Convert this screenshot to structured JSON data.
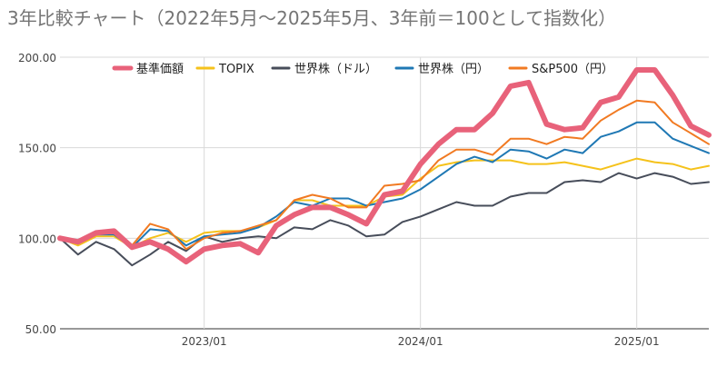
{
  "chart_data": {
    "type": "line",
    "title": "3年比較チャート（2022年5月〜2025年5月、3年前＝100として指数化）",
    "xlabel": "",
    "ylabel": "",
    "ylim": [
      50,
      200
    ],
    "y_ticks": [
      "50.00",
      "100.00",
      "150.00",
      "200.00"
    ],
    "x_ticks": [
      {
        "label": "2023/01",
        "date": "2023-01"
      },
      {
        "label": "2024/01",
        "date": "2024-01"
      },
      {
        "label": "2025/01",
        "date": "2025-01"
      }
    ],
    "grid": true,
    "legend_position": "top",
    "x": [
      "2022-05",
      "2022-06",
      "2022-07",
      "2022-08",
      "2022-09",
      "2022-10",
      "2022-11",
      "2022-12",
      "2023-01",
      "2023-02",
      "2023-03",
      "2023-04",
      "2023-05",
      "2023-06",
      "2023-07",
      "2023-08",
      "2023-09",
      "2023-10",
      "2023-11",
      "2023-12",
      "2024-01",
      "2024-02",
      "2024-03",
      "2024-04",
      "2024-05",
      "2024-06",
      "2024-07",
      "2024-08",
      "2024-09",
      "2024-10",
      "2024-11",
      "2024-12",
      "2025-01",
      "2025-02",
      "2025-03",
      "2025-04",
      "2025-05"
    ],
    "series": [
      {
        "name": "基準価額",
        "color": "#e8627a",
        "width": 6,
        "values": [
          100,
          98,
          103,
          104,
          95,
          98,
          94,
          87,
          94,
          96,
          97,
          92,
          107,
          113,
          117,
          117,
          113,
          108,
          124,
          126,
          141,
          152,
          160,
          160,
          169,
          184,
          186,
          163,
          160,
          161,
          175,
          178,
          193,
          193,
          179,
          162,
          157
        ]
      },
      {
        "name": "TOPIX",
        "color": "#f5c21b",
        "width": 2,
        "values": [
          100,
          96,
          101,
          101,
          95,
          100,
          103,
          98,
          103,
          104,
          104,
          106,
          110,
          121,
          121,
          118,
          118,
          118,
          123,
          124,
          133,
          140,
          142,
          143,
          143,
          143,
          141,
          141,
          142,
          140,
          138,
          141,
          144,
          142,
          141,
          138,
          140
        ]
      },
      {
        "name": "世界株（ドル）",
        "color": "#474d5a",
        "width": 2,
        "values": [
          100,
          91,
          98,
          94,
          85,
          91,
          98,
          93,
          101,
          98,
          100,
          101,
          100,
          106,
          105,
          110,
          107,
          101,
          102,
          109,
          112,
          116,
          120,
          118,
          118,
          123,
          125,
          125,
          131,
          132,
          131,
          136,
          133,
          136,
          134,
          130,
          131
        ]
      },
      {
        "name": "世界株（円）",
        "color": "#1f78b4",
        "width": 2,
        "values": [
          100,
          97,
          102,
          102,
          95,
          105,
          104,
          96,
          101,
          102,
          103,
          106,
          112,
          120,
          118,
          122,
          122,
          118,
          120,
          122,
          127,
          134,
          141,
          145,
          142,
          149,
          148,
          144,
          149,
          147,
          156,
          159,
          164,
          164,
          155,
          151,
          147
        ]
      },
      {
        "name": "S&P500（円）",
        "color": "#f17a22",
        "width": 2,
        "values": [
          100,
          97,
          103,
          103,
          96,
          108,
          105,
          94,
          100,
          103,
          104,
          107,
          110,
          121,
          124,
          122,
          117,
          117,
          129,
          130,
          132,
          143,
          149,
          149,
          146,
          155,
          155,
          152,
          156,
          155,
          165,
          171,
          176,
          175,
          164,
          158,
          152
        ]
      }
    ]
  }
}
